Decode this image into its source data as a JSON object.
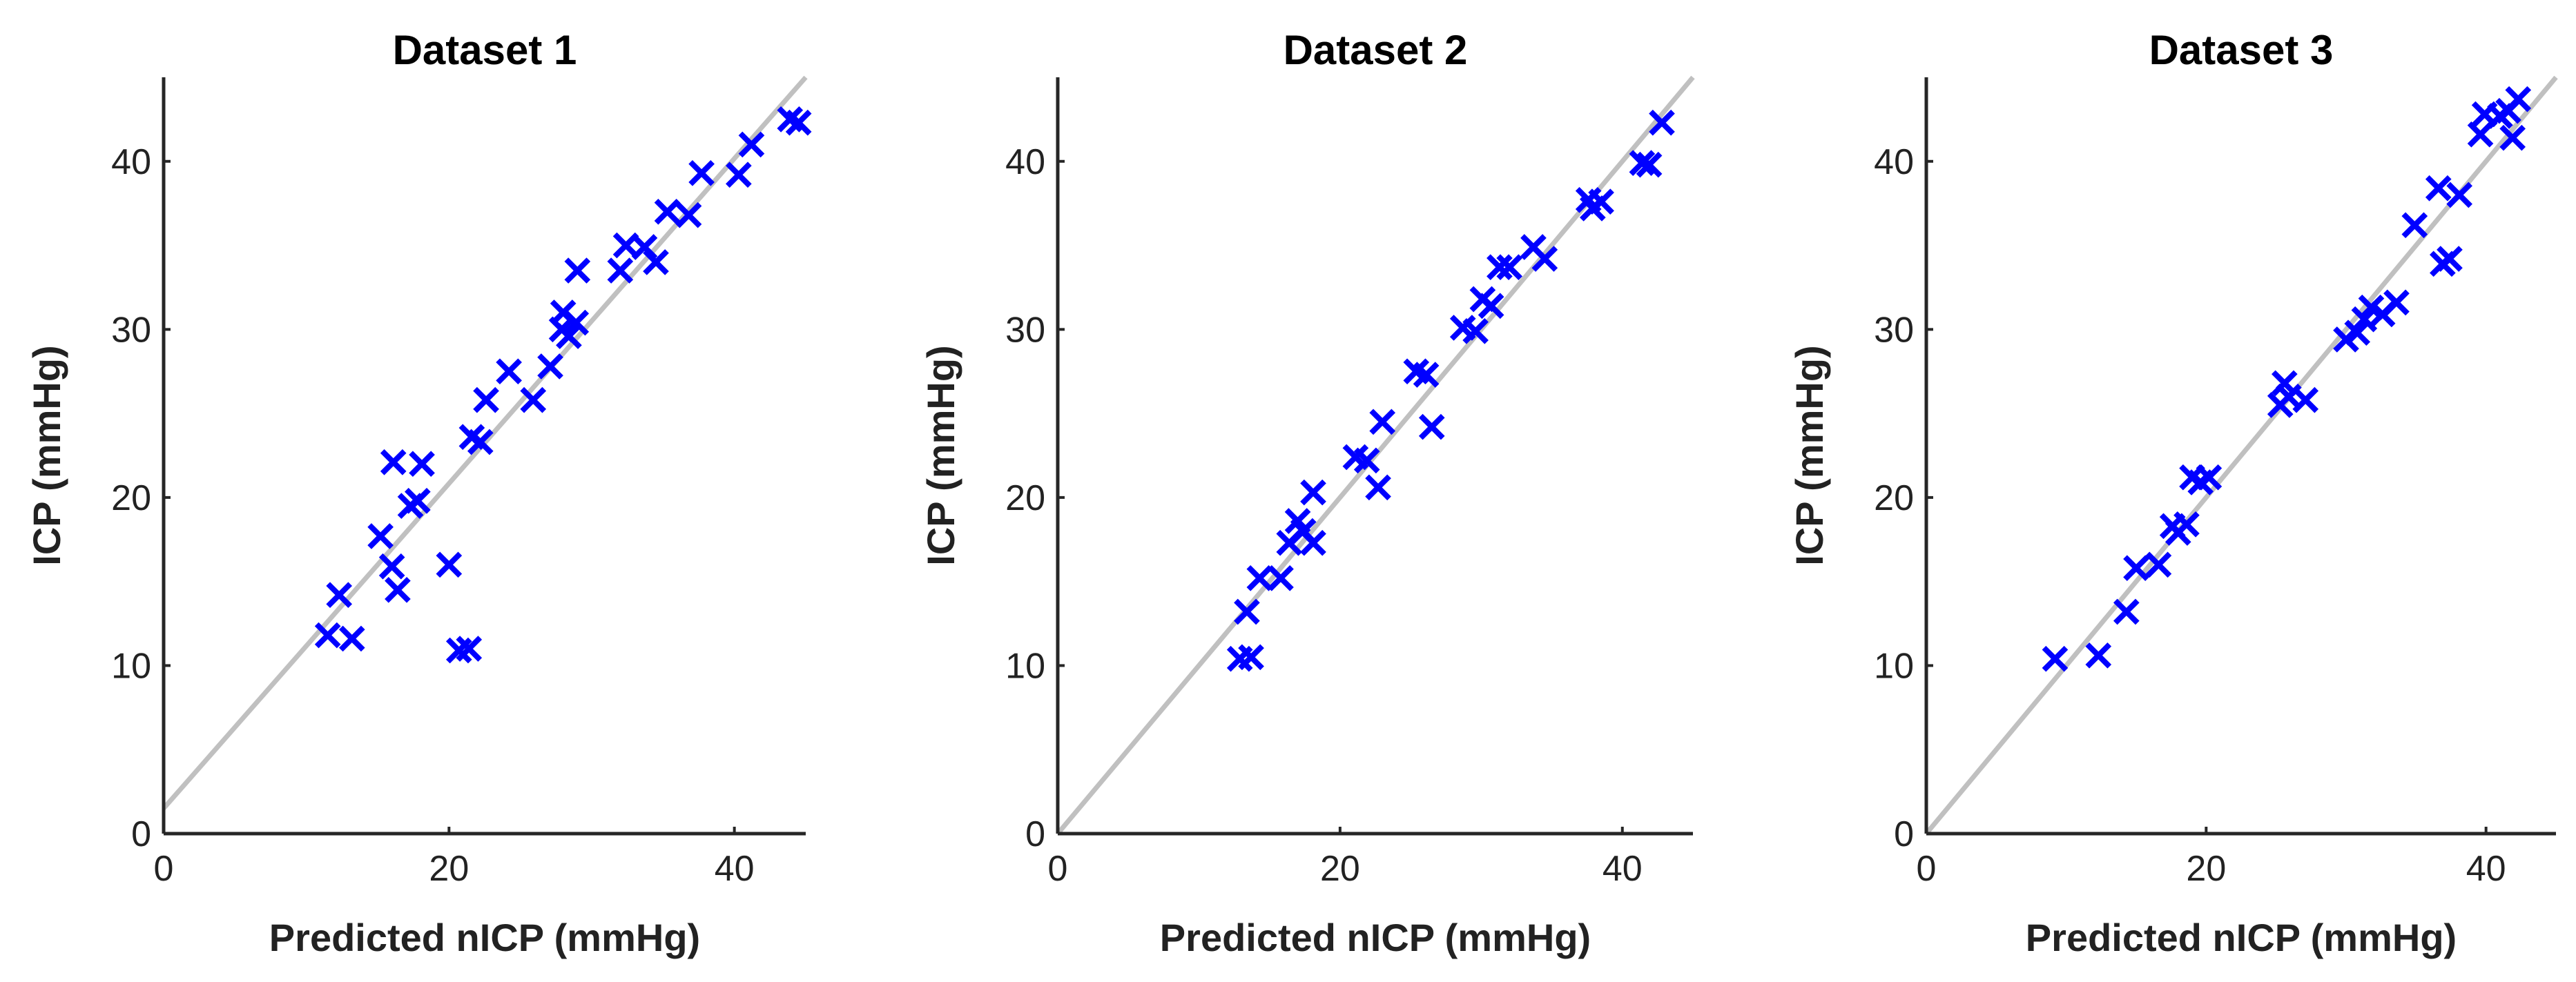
{
  "chart_data": [
    {
      "type": "scatter",
      "title": "Dataset 1",
      "xlabel": "Predicted nICP (mmHg)",
      "ylabel": "ICP (mmHg)",
      "xlim": [
        0,
        45
      ],
      "ylim": [
        0,
        45
      ],
      "xticks": [
        0,
        20,
        40
      ],
      "yticks": [
        0,
        10,
        20,
        30,
        40
      ],
      "marker": "x",
      "marker_color": "#0000ff",
      "reference_line": {
        "from": [
          0,
          1.5
        ],
        "to": [
          45,
          45
        ],
        "color": "#c0c0c0"
      },
      "series": [
        {
          "name": "Dataset 1",
          "points": [
            [
              11.5,
              11.8
            ],
            [
              12.3,
              14.2
            ],
            [
              13.2,
              11.6
            ],
            [
              15.2,
              17.7
            ],
            [
              16.0,
              15.9
            ],
            [
              16.4,
              14.5
            ],
            [
              16.1,
              22.1
            ],
            [
              17.3,
              19.5
            ],
            [
              17.8,
              19.8
            ],
            [
              18.1,
              22.0
            ],
            [
              20.0,
              16.0
            ],
            [
              20.7,
              10.9
            ],
            [
              21.4,
              11.0
            ],
            [
              21.6,
              23.6
            ],
            [
              22.2,
              23.3
            ],
            [
              22.6,
              25.8
            ],
            [
              24.2,
              27.5
            ],
            [
              25.9,
              25.8
            ],
            [
              27.1,
              27.8
            ],
            [
              27.9,
              30.0
            ],
            [
              28.0,
              31.0
            ],
            [
              28.4,
              29.6
            ],
            [
              28.9,
              30.4
            ],
            [
              29.0,
              33.5
            ],
            [
              32.0,
              33.5
            ],
            [
              32.4,
              35.0
            ],
            [
              33.7,
              34.9
            ],
            [
              34.5,
              34.0
            ],
            [
              35.3,
              37.0
            ],
            [
              36.8,
              36.8
            ],
            [
              37.7,
              39.3
            ],
            [
              40.3,
              39.2
            ],
            [
              41.2,
              41.0
            ],
            [
              43.9,
              42.5
            ],
            [
              44.5,
              42.3
            ]
          ]
        }
      ]
    },
    {
      "type": "scatter",
      "title": "Dataset 2",
      "xlabel": "Predicted nICP (mmHg)",
      "ylabel": "ICP (mmHg)",
      "xlim": [
        0,
        45
      ],
      "ylim": [
        0,
        45
      ],
      "xticks": [
        0,
        20,
        40
      ],
      "yticks": [
        0,
        10,
        20,
        30,
        40
      ],
      "marker": "x",
      "marker_color": "#0000ff",
      "reference_line": {
        "from": [
          0,
          0
        ],
        "to": [
          45,
          45
        ],
        "color": "#c0c0c0"
      },
      "series": [
        {
          "name": "Dataset 2",
          "points": [
            [
              12.9,
              10.4
            ],
            [
              13.4,
              13.2
            ],
            [
              13.7,
              10.5
            ],
            [
              14.3,
              15.2
            ],
            [
              15.8,
              15.2
            ],
            [
              16.4,
              17.3
            ],
            [
              17.0,
              18.6
            ],
            [
              17.4,
              18.0
            ],
            [
              18.1,
              17.3
            ],
            [
              18.1,
              20.3
            ],
            [
              21.1,
              22.4
            ],
            [
              21.9,
              22.2
            ],
            [
              22.7,
              20.6
            ],
            [
              23.0,
              24.5
            ],
            [
              25.4,
              27.5
            ],
            [
              26.1,
              27.3
            ],
            [
              26.5,
              24.2
            ],
            [
              28.7,
              30.1
            ],
            [
              29.6,
              29.9
            ],
            [
              30.1,
              31.8
            ],
            [
              30.7,
              31.4
            ],
            [
              31.3,
              33.7
            ],
            [
              32.0,
              33.7
            ],
            [
              33.7,
              34.9
            ],
            [
              34.5,
              34.2
            ],
            [
              37.6,
              37.7
            ],
            [
              37.9,
              37.2
            ],
            [
              38.5,
              37.6
            ],
            [
              41.4,
              39.9
            ],
            [
              41.9,
              39.8
            ],
            [
              42.8,
              42.3
            ]
          ]
        }
      ]
    },
    {
      "type": "scatter",
      "title": "Dataset 3",
      "xlabel": "Predicted nICP (mmHg)",
      "ylabel": "ICP (mmHg)",
      "xlim": [
        0,
        45
      ],
      "ylim": [
        0,
        45
      ],
      "xticks": [
        0,
        20,
        40
      ],
      "yticks": [
        0,
        10,
        20,
        30,
        40
      ],
      "marker": "x",
      "marker_color": "#0000ff",
      "reference_line": {
        "from": [
          0,
          0
        ],
        "to": [
          45,
          45
        ],
        "color": "#c0c0c0"
      },
      "series": [
        {
          "name": "Dataset 3",
          "points": [
            [
              9.2,
              10.4
            ],
            [
              12.3,
              10.6
            ],
            [
              14.3,
              13.2
            ],
            [
              15.0,
              15.8
            ],
            [
              16.6,
              16.0
            ],
            [
              17.6,
              18.3
            ],
            [
              18.0,
              17.9
            ],
            [
              18.6,
              18.4
            ],
            [
              19.0,
              21.2
            ],
            [
              19.6,
              20.9
            ],
            [
              20.2,
              21.2
            ],
            [
              25.3,
              25.5
            ],
            [
              25.6,
              26.8
            ],
            [
              25.9,
              26.0
            ],
            [
              27.1,
              25.8
            ],
            [
              30.0,
              29.4
            ],
            [
              30.8,
              29.8
            ],
            [
              31.3,
              30.6
            ],
            [
              31.8,
              31.3
            ],
            [
              32.6,
              30.9
            ],
            [
              33.6,
              31.6
            ],
            [
              34.9,
              36.2
            ],
            [
              36.6,
              38.4
            ],
            [
              36.9,
              33.9
            ],
            [
              37.4,
              34.2
            ],
            [
              38.1,
              38.0
            ],
            [
              39.6,
              41.6
            ],
            [
              39.9,
              42.8
            ],
            [
              41.0,
              42.7
            ],
            [
              41.6,
              43.0
            ],
            [
              41.9,
              41.4
            ],
            [
              42.3,
              43.7
            ]
          ]
        }
      ]
    }
  ]
}
